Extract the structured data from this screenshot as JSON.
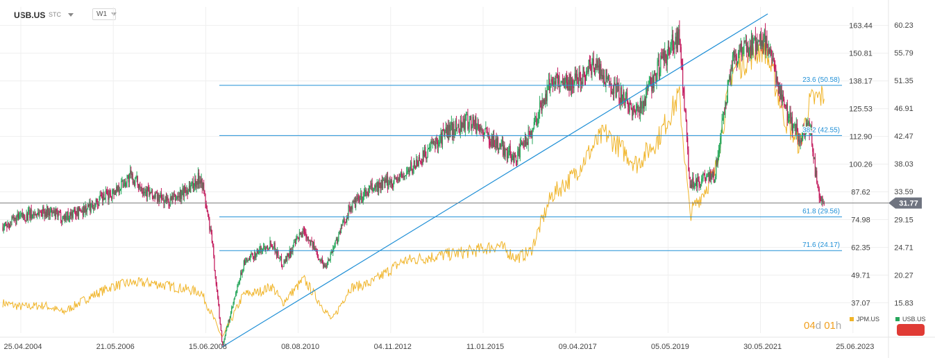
{
  "toolbar": {
    "symbol": "USB.US",
    "chart_type": "STC",
    "interval": "W1"
  },
  "timer": {
    "days": "04",
    "day_unit": "d",
    "hours": "01",
    "hour_unit": "h"
  },
  "legend": [
    {
      "name": "JPM.US",
      "color": "#f0b428"
    },
    {
      "name": "USB.US",
      "color": "#26a65b"
    }
  ],
  "colors": {
    "bull": "#26a65b",
    "bear": "#c2185b",
    "jpm": "#f0b428",
    "fib": "#1f8fd6",
    "current": "#7d7d7d"
  },
  "chart_data": {
    "type": "candlestick",
    "title": "",
    "x_ticks": [
      "25.04.2004",
      "21.05.2006",
      "15.06.2008",
      "08.08.2010",
      "04.11.2012",
      "11.01.2015",
      "09.04.2017",
      "05.05.2019",
      "30.05.2021",
      "25.06.2023"
    ],
    "left_axis_ticks": [
      163.44,
      150.81,
      138.17,
      125.53,
      112.9,
      100.26,
      87.62,
      74.98,
      62.35,
      49.71,
      37.07
    ],
    "right_axis_ticks": [
      60.23,
      55.79,
      51.35,
      46.91,
      42.47,
      38.03,
      33.59,
      29.15,
      24.71,
      20.27,
      15.83
    ],
    "right_axis_range": [
      11.0,
      62.0
    ],
    "left_axis_range": [
      23.3,
      168.7
    ],
    "current_price": "31.77",
    "fibonacci_levels": [
      {
        "label": "23.6 (50.58)",
        "value": 50.58
      },
      {
        "label": "38.2 (42.55)",
        "value": 42.55
      },
      {
        "label": "61.8 (29.56)",
        "value": 29.56
      },
      {
        "label": "71.6 (24.17)",
        "value": 24.17
      }
    ],
    "trendline": {
      "from": {
        "date": "2009-03",
        "value": 8.8
      },
      "to": {
        "date": "2022-01",
        "value": 62.0
      }
    },
    "series": [
      {
        "name": "USB.US",
        "style": "candles",
        "keypoints": [
          [
            "2004-01",
            28.0
          ],
          [
            "2004-06",
            29.5
          ],
          [
            "2005-01",
            30.5
          ],
          [
            "2005-06",
            29.5
          ],
          [
            "2006-01",
            31.0
          ],
          [
            "2006-08",
            33.5
          ],
          [
            "2007-01",
            36.0
          ],
          [
            "2007-07",
            33.0
          ],
          [
            "2007-12",
            32.0
          ],
          [
            "2008-03",
            33.0
          ],
          [
            "2008-09",
            36.0
          ],
          [
            "2008-12",
            26.0
          ],
          [
            "2009-03",
            9.0
          ],
          [
            "2009-09",
            22.0
          ],
          [
            "2010-01",
            24.0
          ],
          [
            "2010-05",
            25.5
          ],
          [
            "2010-08",
            22.0
          ],
          [
            "2011-02",
            27.5
          ],
          [
            "2011-08",
            21.5
          ],
          [
            "2012-03",
            31.0
          ],
          [
            "2012-09",
            34.0
          ],
          [
            "2013-06",
            36.0
          ],
          [
            "2014-06",
            43.0
          ],
          [
            "2015-01",
            45.0
          ],
          [
            "2015-09",
            41.0
          ],
          [
            "2016-02",
            39.0
          ],
          [
            "2016-06",
            43.0
          ],
          [
            "2016-12",
            51.5
          ],
          [
            "2017-06",
            51.0
          ],
          [
            "2017-12",
            54.0
          ],
          [
            "2018-12",
            46.0
          ],
          [
            "2019-06",
            53.0
          ],
          [
            "2019-12",
            59.0
          ],
          [
            "2020-03",
            35.0
          ],
          [
            "2020-10",
            36.0
          ],
          [
            "2021-03",
            55.0
          ],
          [
            "2021-12",
            58.0
          ],
          [
            "2022-06",
            47.0
          ],
          [
            "2022-10",
            42.0
          ],
          [
            "2023-01",
            44.0
          ],
          [
            "2023-03",
            34.0
          ],
          [
            "2023-05",
            31.77
          ]
        ]
      },
      {
        "name": "JPM.US",
        "style": "line",
        "keypoints": [
          [
            "2004-01",
            15.8
          ],
          [
            "2004-06",
            15.2
          ],
          [
            "2005-01",
            15.4
          ],
          [
            "2005-06",
            14.3
          ],
          [
            "2006-01",
            16.6
          ],
          [
            "2006-08",
            18.5
          ],
          [
            "2007-01",
            19.0
          ],
          [
            "2007-07",
            19.0
          ],
          [
            "2008-03",
            18.2
          ],
          [
            "2008-09",
            17.5
          ],
          [
            "2008-12",
            14.0
          ],
          [
            "2009-03",
            10.2
          ],
          [
            "2009-09",
            17.2
          ],
          [
            "2010-01",
            17.5
          ],
          [
            "2010-05",
            18.5
          ],
          [
            "2010-08",
            15.8
          ],
          [
            "2011-02",
            19.6
          ],
          [
            "2011-10",
            13.0
          ],
          [
            "2012-03",
            18.2
          ],
          [
            "2012-09",
            19.0
          ],
          [
            "2013-06",
            22.5
          ],
          [
            "2014-06",
            23.5
          ],
          [
            "2015-01",
            24.0
          ],
          [
            "2015-09",
            25.0
          ],
          [
            "2016-02",
            23.0
          ],
          [
            "2016-06",
            24.0
          ],
          [
            "2016-12",
            33.0
          ],
          [
            "2017-06",
            36.0
          ],
          [
            "2017-12",
            41.0
          ],
          [
            "2018-03",
            43.0
          ],
          [
            "2018-12",
            38.0
          ],
          [
            "2019-06",
            42.0
          ],
          [
            "2019-12",
            49.0
          ],
          [
            "2020-03",
            30.0
          ],
          [
            "2020-10",
            36.5
          ],
          [
            "2021-03",
            53.0
          ],
          [
            "2021-12",
            57.0
          ],
          [
            "2022-06",
            45.0
          ],
          [
            "2022-10",
            41.0
          ],
          [
            "2023-01",
            48.0
          ],
          [
            "2023-05",
            49.0
          ]
        ]
      }
    ]
  }
}
